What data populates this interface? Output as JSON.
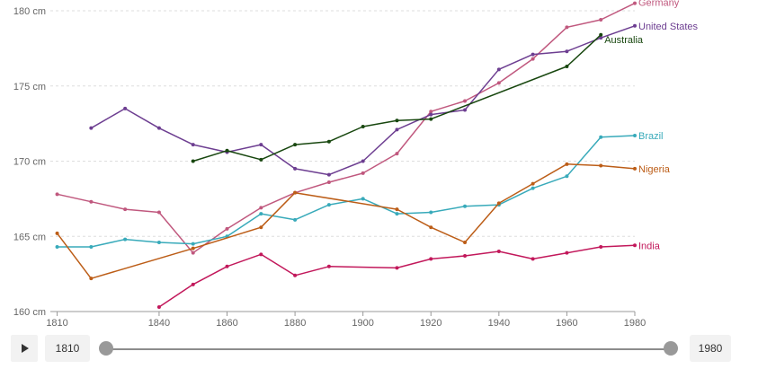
{
  "chart_data": {
    "type": "line",
    "title": "",
    "xlabel": "",
    "ylabel": "",
    "xlim": [
      1808,
      1980
    ],
    "ylim": [
      160,
      180
    ],
    "x_ticks": [
      1810,
      1840,
      1860,
      1880,
      1900,
      1920,
      1940,
      1960,
      1980
    ],
    "y_ticks": [
      {
        "value": 160,
        "label": "160 cm"
      },
      {
        "value": 165,
        "label": "165 cm"
      },
      {
        "value": 170,
        "label": "170 cm"
      },
      {
        "value": 175,
        "label": "175 cm"
      },
      {
        "value": 180,
        "label": "180 cm"
      }
    ],
    "grid": true,
    "legend": "inline at line ends",
    "series": [
      {
        "name": "Germany",
        "color": "#c0587e",
        "points": [
          [
            1810,
            167.8
          ],
          [
            1820,
            167.3
          ],
          [
            1830,
            166.8
          ],
          [
            1840,
            166.6
          ],
          [
            1850,
            163.9
          ],
          [
            1860,
            165.5
          ],
          [
            1870,
            166.9
          ],
          [
            1880,
            167.9
          ],
          [
            1890,
            168.6
          ],
          [
            1900,
            169.2
          ],
          [
            1910,
            170.5
          ],
          [
            1920,
            173.3
          ],
          [
            1930,
            174.0
          ],
          [
            1940,
            175.2
          ],
          [
            1950,
            176.8
          ],
          [
            1960,
            178.9
          ],
          [
            1970,
            179.4
          ],
          [
            1980,
            180.5
          ]
        ]
      },
      {
        "name": "United States",
        "color": "#6d3e91",
        "points": [
          [
            1820,
            172.2
          ],
          [
            1830,
            173.5
          ],
          [
            1840,
            172.2
          ],
          [
            1850,
            171.1
          ],
          [
            1860,
            170.6
          ],
          [
            1870,
            171.1
          ],
          [
            1880,
            169.5
          ],
          [
            1890,
            169.1
          ],
          [
            1900,
            170.0
          ],
          [
            1910,
            172.1
          ],
          [
            1920,
            173.1
          ],
          [
            1930,
            173.4
          ],
          [
            1940,
            176.1
          ],
          [
            1950,
            177.1
          ],
          [
            1960,
            177.3
          ],
          [
            1970,
            178.2
          ],
          [
            1980,
            179.0
          ]
        ]
      },
      {
        "name": "Australia",
        "color": "#18470f",
        "points": [
          [
            1850,
            170.0
          ],
          [
            1860,
            170.7
          ],
          [
            1870,
            170.1
          ],
          [
            1880,
            171.1
          ],
          [
            1890,
            171.3
          ],
          [
            1900,
            172.3
          ],
          [
            1910,
            172.7
          ],
          [
            1920,
            172.8
          ],
          [
            1960,
            176.3
          ],
          [
            1970,
            178.4
          ]
        ]
      },
      {
        "name": "Brazil",
        "color": "#38aaba",
        "points": [
          [
            1810,
            164.3
          ],
          [
            1820,
            164.3
          ],
          [
            1830,
            164.8
          ],
          [
            1840,
            164.6
          ],
          [
            1850,
            164.5
          ],
          [
            1860,
            165.0
          ],
          [
            1870,
            166.5
          ],
          [
            1880,
            166.1
          ],
          [
            1890,
            167.1
          ],
          [
            1900,
            167.5
          ],
          [
            1910,
            166.5
          ],
          [
            1920,
            166.6
          ],
          [
            1930,
            167.0
          ],
          [
            1940,
            167.1
          ],
          [
            1950,
            168.2
          ],
          [
            1960,
            169.0
          ],
          [
            1970,
            171.6
          ],
          [
            1980,
            171.7
          ]
        ]
      },
      {
        "name": "Nigeria",
        "color": "#bc5d17",
        "points": [
          [
            1810,
            165.2
          ],
          [
            1820,
            162.2
          ],
          [
            1850,
            164.2
          ],
          [
            1870,
            165.6
          ],
          [
            1880,
            167.9
          ],
          [
            1910,
            166.8
          ],
          [
            1920,
            165.6
          ],
          [
            1930,
            164.6
          ],
          [
            1940,
            167.2
          ],
          [
            1950,
            168.5
          ],
          [
            1960,
            169.8
          ],
          [
            1970,
            169.7
          ],
          [
            1980,
            169.5
          ]
        ]
      },
      {
        "name": "India",
        "color": "#c2185b",
        "points": [
          [
            1840,
            160.3
          ],
          [
            1850,
            161.8
          ],
          [
            1860,
            163.0
          ],
          [
            1870,
            163.8
          ],
          [
            1880,
            162.4
          ],
          [
            1890,
            163.0
          ],
          [
            1910,
            162.9
          ],
          [
            1920,
            163.5
          ],
          [
            1930,
            163.7
          ],
          [
            1940,
            164.0
          ],
          [
            1950,
            163.5
          ],
          [
            1960,
            163.9
          ],
          [
            1970,
            164.3
          ],
          [
            1980,
            164.4
          ]
        ]
      }
    ]
  },
  "timeline": {
    "start_label": "1810",
    "end_label": "1980",
    "start_value": 1810,
    "end_value": 1980
  }
}
